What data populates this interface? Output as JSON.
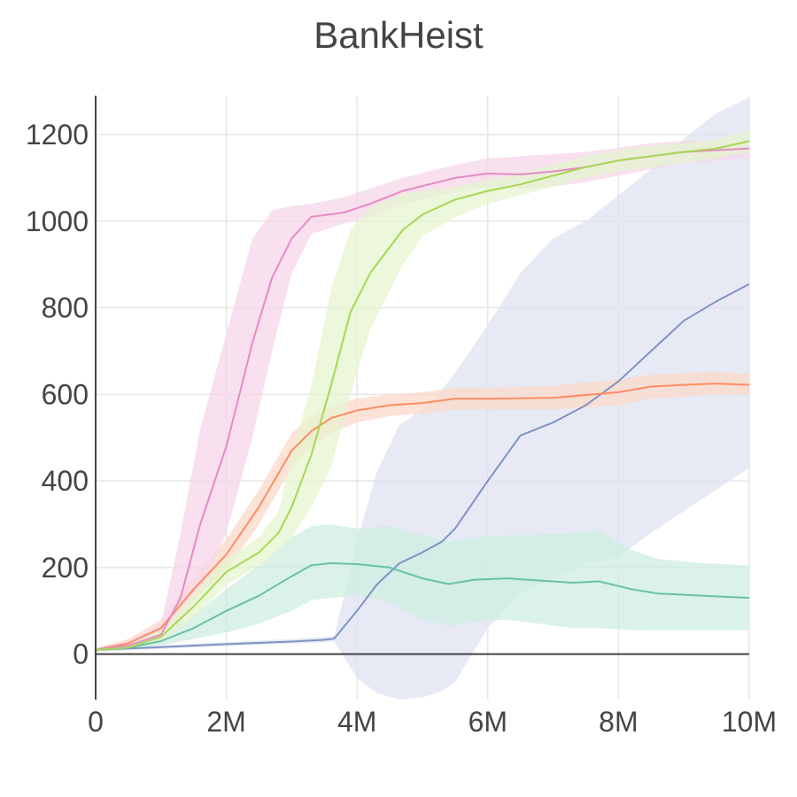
{
  "chart_data": {
    "type": "line",
    "title": "BankHeist",
    "xlabel": "",
    "ylabel": "",
    "xlim": [
      0,
      10000000
    ],
    "ylim": [
      -105,
      1290
    ],
    "x_ticks": [
      {
        "value": 0,
        "label": "0"
      },
      {
        "value": 2000000,
        "label": "2M"
      },
      {
        "value": 4000000,
        "label": "4M"
      },
      {
        "value": 6000000,
        "label": "6M"
      },
      {
        "value": 8000000,
        "label": "8M"
      },
      {
        "value": 10000000,
        "label": "10M"
      }
    ],
    "y_ticks": [
      {
        "value": 0,
        "label": "0"
      },
      {
        "value": 200,
        "label": "200"
      },
      {
        "value": 400,
        "label": "400"
      },
      {
        "value": 600,
        "label": "600"
      },
      {
        "value": 800,
        "label": "800"
      },
      {
        "value": 1000,
        "label": "1000"
      },
      {
        "value": 1200,
        "label": "1200"
      }
    ],
    "grid": true,
    "legend": "none",
    "series": [
      {
        "color": "#7f93c4",
        "band_color": "#dfe3f1",
        "points": [
          {
            "x": 0,
            "y": 10,
            "lo": 5,
            "hi": 15
          },
          {
            "x": 1000000,
            "y": 16,
            "lo": 12,
            "hi": 20
          },
          {
            "x": 2000000,
            "y": 23,
            "lo": 18,
            "hi": 28
          },
          {
            "x": 3000000,
            "y": 29,
            "lo": 24,
            "hi": 35
          },
          {
            "x": 3500000,
            "y": 33,
            "lo": 27,
            "hi": 40
          },
          {
            "x": 3650000,
            "y": 36,
            "lo": 30,
            "hi": 42
          },
          {
            "x": 4000000,
            "y": 100,
            "lo": -55,
            "hi": 260
          },
          {
            "x": 4300000,
            "y": 160,
            "lo": -90,
            "hi": 420
          },
          {
            "x": 4650000,
            "y": 210,
            "lo": -105,
            "hi": 530
          },
          {
            "x": 5000000,
            "y": 235,
            "lo": -100,
            "hi": 565
          },
          {
            "x": 5300000,
            "y": 260,
            "lo": -85,
            "hi": 610
          },
          {
            "x": 5500000,
            "y": 290,
            "lo": -65,
            "hi": 650
          },
          {
            "x": 6000000,
            "y": 400,
            "lo": 60,
            "hi": 760
          },
          {
            "x": 6500000,
            "y": 505,
            "lo": 140,
            "hi": 880
          },
          {
            "x": 7000000,
            "y": 535,
            "lo": 175,
            "hi": 960
          },
          {
            "x": 7500000,
            "y": 575,
            "lo": 210,
            "hi": 1000
          },
          {
            "x": 8000000,
            "y": 630,
            "lo": 225,
            "hi": 1060
          },
          {
            "x": 8500000,
            "y": 700,
            "lo": 280,
            "hi": 1120
          },
          {
            "x": 9000000,
            "y": 770,
            "lo": 330,
            "hi": 1190
          },
          {
            "x": 9500000,
            "y": 815,
            "lo": 380,
            "hi": 1250
          },
          {
            "x": 10000000,
            "y": 855,
            "lo": 430,
            "hi": 1285
          }
        ]
      },
      {
        "color": "#66c2a5",
        "band_color": "#cdeee0",
        "points": [
          {
            "x": 0,
            "y": 10,
            "lo": 6,
            "hi": 14
          },
          {
            "x": 500000,
            "y": 15,
            "lo": 10,
            "hi": 20
          },
          {
            "x": 1000000,
            "y": 30,
            "lo": 20,
            "hi": 42
          },
          {
            "x": 1500000,
            "y": 60,
            "lo": 35,
            "hi": 90
          },
          {
            "x": 2000000,
            "y": 100,
            "lo": 50,
            "hi": 150
          },
          {
            "x": 2500000,
            "y": 135,
            "lo": 70,
            "hi": 205
          },
          {
            "x": 3000000,
            "y": 180,
            "lo": 100,
            "hi": 270
          },
          {
            "x": 3300000,
            "y": 205,
            "lo": 125,
            "hi": 295
          },
          {
            "x": 3600000,
            "y": 210,
            "lo": 130,
            "hi": 300
          },
          {
            "x": 4000000,
            "y": 208,
            "lo": 135,
            "hi": 290
          },
          {
            "x": 4500000,
            "y": 200,
            "lo": 120,
            "hi": 295
          },
          {
            "x": 5000000,
            "y": 175,
            "lo": 80,
            "hi": 275
          },
          {
            "x": 5400000,
            "y": 162,
            "lo": 65,
            "hi": 260
          },
          {
            "x": 5800000,
            "y": 172,
            "lo": 75,
            "hi": 270
          },
          {
            "x": 6300000,
            "y": 175,
            "lo": 80,
            "hi": 275
          },
          {
            "x": 6800000,
            "y": 170,
            "lo": 70,
            "hi": 275
          },
          {
            "x": 7300000,
            "y": 165,
            "lo": 60,
            "hi": 280
          },
          {
            "x": 7700000,
            "y": 168,
            "lo": 60,
            "hi": 285
          },
          {
            "x": 8200000,
            "y": 150,
            "lo": 55,
            "hi": 240
          },
          {
            "x": 8600000,
            "y": 140,
            "lo": 55,
            "hi": 220
          },
          {
            "x": 9300000,
            "y": 135,
            "lo": 55,
            "hi": 210
          },
          {
            "x": 10000000,
            "y": 130,
            "lo": 55,
            "hi": 205
          }
        ]
      },
      {
        "color": "#fc8d62",
        "band_color": "#fcd9c9",
        "points": [
          {
            "x": 0,
            "y": 10,
            "lo": 6,
            "hi": 14
          },
          {
            "x": 500000,
            "y": 25,
            "lo": 15,
            "hi": 35
          },
          {
            "x": 1000000,
            "y": 60,
            "lo": 40,
            "hi": 80
          },
          {
            "x": 1500000,
            "y": 150,
            "lo": 120,
            "hi": 180
          },
          {
            "x": 2000000,
            "y": 230,
            "lo": 195,
            "hi": 265
          },
          {
            "x": 2500000,
            "y": 340,
            "lo": 300,
            "hi": 380
          },
          {
            "x": 3000000,
            "y": 470,
            "lo": 430,
            "hi": 510
          },
          {
            "x": 3300000,
            "y": 515,
            "lo": 480,
            "hi": 550
          },
          {
            "x": 3600000,
            "y": 545,
            "lo": 510,
            "hi": 575
          },
          {
            "x": 4000000,
            "y": 563,
            "lo": 535,
            "hi": 590
          },
          {
            "x": 4500000,
            "y": 575,
            "lo": 550,
            "hi": 600
          },
          {
            "x": 5000000,
            "y": 580,
            "lo": 555,
            "hi": 605
          },
          {
            "x": 5500000,
            "y": 590,
            "lo": 565,
            "hi": 615
          },
          {
            "x": 6000000,
            "y": 590,
            "lo": 565,
            "hi": 615
          },
          {
            "x": 7000000,
            "y": 592,
            "lo": 565,
            "hi": 620
          },
          {
            "x": 8000000,
            "y": 605,
            "lo": 575,
            "hi": 635
          },
          {
            "x": 8500000,
            "y": 618,
            "lo": 590,
            "hi": 645
          },
          {
            "x": 9000000,
            "y": 622,
            "lo": 595,
            "hi": 650
          },
          {
            "x": 9500000,
            "y": 625,
            "lo": 600,
            "hi": 652
          },
          {
            "x": 10000000,
            "y": 622,
            "lo": 598,
            "hi": 648
          }
        ]
      },
      {
        "color": "#e78ac3",
        "band_color": "#f6d5ea",
        "points": [
          {
            "x": 0,
            "y": 10,
            "lo": 6,
            "hi": 14
          },
          {
            "x": 500000,
            "y": 20,
            "lo": 12,
            "hi": 30
          },
          {
            "x": 1000000,
            "y": 45,
            "lo": 30,
            "hi": 70
          },
          {
            "x": 1300000,
            "y": 130,
            "lo": 70,
            "hi": 280
          },
          {
            "x": 1600000,
            "y": 300,
            "lo": 150,
            "hi": 520
          },
          {
            "x": 2000000,
            "y": 480,
            "lo": 280,
            "hi": 740
          },
          {
            "x": 2400000,
            "y": 720,
            "lo": 500,
            "hi": 960
          },
          {
            "x": 2700000,
            "y": 870,
            "lo": 700,
            "hi": 1025
          },
          {
            "x": 3000000,
            "y": 960,
            "lo": 880,
            "hi": 1035
          },
          {
            "x": 3300000,
            "y": 1010,
            "lo": 970,
            "hi": 1040
          },
          {
            "x": 3800000,
            "y": 1020,
            "lo": 995,
            "hi": 1055
          },
          {
            "x": 4200000,
            "y": 1040,
            "lo": 1010,
            "hi": 1075
          },
          {
            "x": 4700000,
            "y": 1070,
            "lo": 1040,
            "hi": 1100
          },
          {
            "x": 5500000,
            "y": 1100,
            "lo": 1070,
            "hi": 1130
          },
          {
            "x": 6000000,
            "y": 1110,
            "lo": 1080,
            "hi": 1145
          },
          {
            "x": 6500000,
            "y": 1108,
            "lo": 1075,
            "hi": 1150
          },
          {
            "x": 7000000,
            "y": 1115,
            "lo": 1080,
            "hi": 1155
          },
          {
            "x": 7500000,
            "y": 1125,
            "lo": 1090,
            "hi": 1160
          },
          {
            "x": 8000000,
            "y": 1140,
            "lo": 1105,
            "hi": 1170
          },
          {
            "x": 8500000,
            "y": 1150,
            "lo": 1120,
            "hi": 1180
          },
          {
            "x": 9000000,
            "y": 1160,
            "lo": 1135,
            "hi": 1185
          },
          {
            "x": 10000000,
            "y": 1168,
            "lo": 1145,
            "hi": 1190
          }
        ]
      },
      {
        "color": "#a6d854",
        "band_color": "#e6f4cf",
        "points": [
          {
            "x": 0,
            "y": 10,
            "lo": 6,
            "hi": 14
          },
          {
            "x": 500000,
            "y": 15,
            "lo": 10,
            "hi": 22
          },
          {
            "x": 1000000,
            "y": 40,
            "lo": 28,
            "hi": 55
          },
          {
            "x": 1500000,
            "y": 110,
            "lo": 85,
            "hi": 140
          },
          {
            "x": 2000000,
            "y": 190,
            "lo": 160,
            "hi": 220
          },
          {
            "x": 2500000,
            "y": 235,
            "lo": 205,
            "hi": 270
          },
          {
            "x": 2800000,
            "y": 280,
            "lo": 240,
            "hi": 330
          },
          {
            "x": 3000000,
            "y": 340,
            "lo": 270,
            "hi": 460
          },
          {
            "x": 3300000,
            "y": 460,
            "lo": 340,
            "hi": 620
          },
          {
            "x": 3600000,
            "y": 620,
            "lo": 430,
            "hi": 840
          },
          {
            "x": 3900000,
            "y": 790,
            "lo": 600,
            "hi": 980
          },
          {
            "x": 4200000,
            "y": 880,
            "lo": 750,
            "hi": 1030
          },
          {
            "x": 4700000,
            "y": 980,
            "lo": 900,
            "hi": 1065
          },
          {
            "x": 5000000,
            "y": 1015,
            "lo": 965,
            "hi": 1070
          },
          {
            "x": 5500000,
            "y": 1050,
            "lo": 1010,
            "hi": 1080
          },
          {
            "x": 6000000,
            "y": 1070,
            "lo": 1040,
            "hi": 1095
          },
          {
            "x": 6500000,
            "y": 1085,
            "lo": 1060,
            "hi": 1110
          },
          {
            "x": 7000000,
            "y": 1105,
            "lo": 1080,
            "hi": 1130
          },
          {
            "x": 7500000,
            "y": 1125,
            "lo": 1100,
            "hi": 1150
          },
          {
            "x": 8000000,
            "y": 1140,
            "lo": 1115,
            "hi": 1165
          },
          {
            "x": 8500000,
            "y": 1150,
            "lo": 1125,
            "hi": 1175
          },
          {
            "x": 9000000,
            "y": 1160,
            "lo": 1135,
            "hi": 1180
          },
          {
            "x": 9500000,
            "y": 1168,
            "lo": 1145,
            "hi": 1190
          },
          {
            "x": 10000000,
            "y": 1185,
            "lo": 1160,
            "hi": 1210
          }
        ]
      }
    ]
  }
}
